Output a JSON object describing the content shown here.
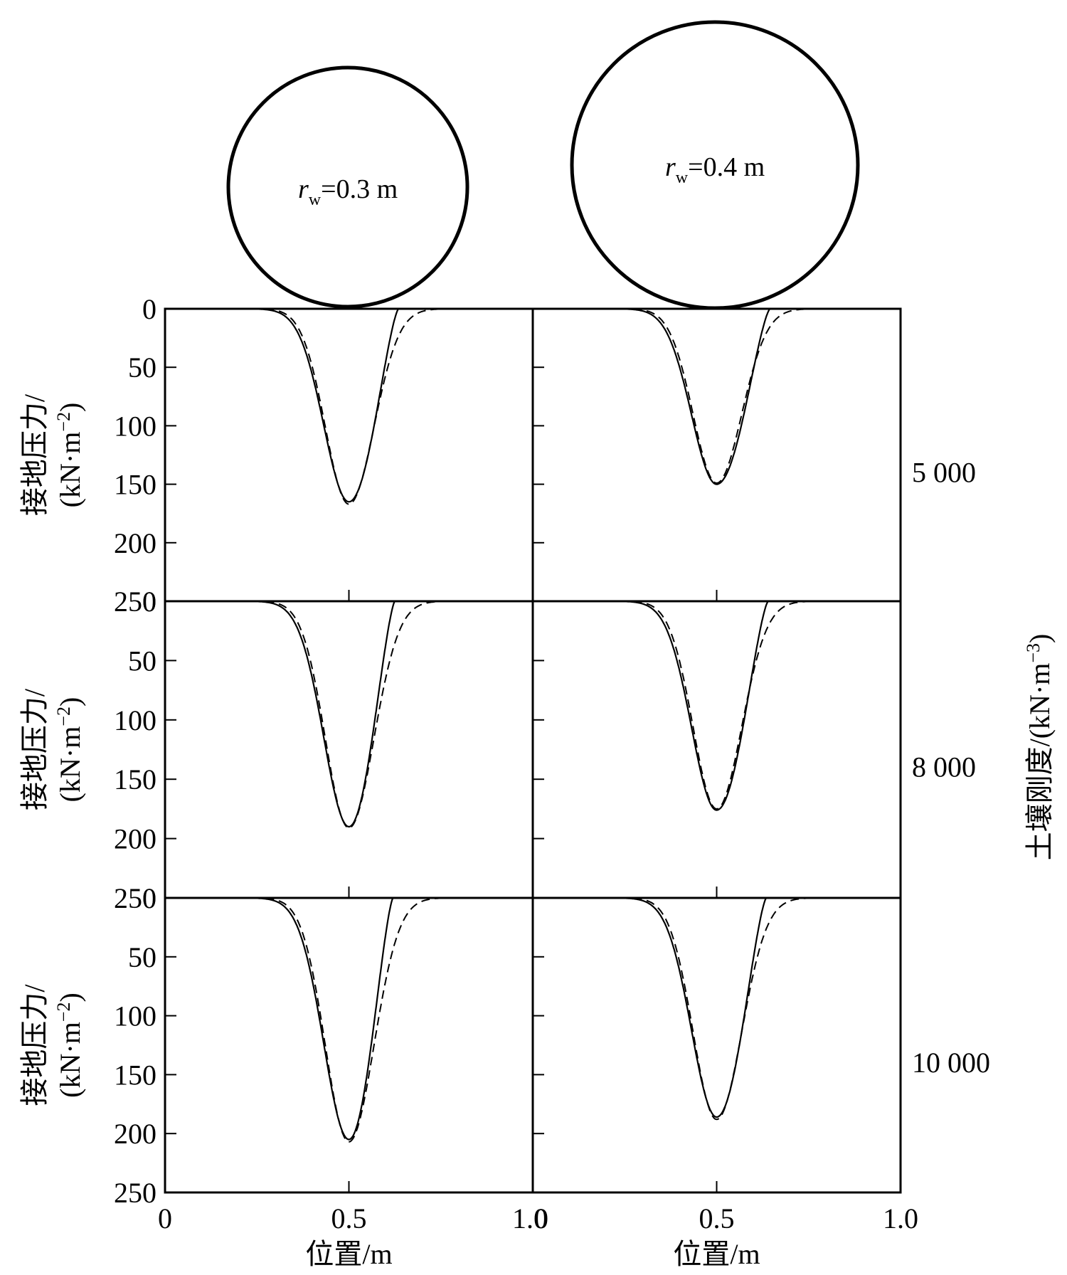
{
  "chart_data": {
    "type": "line",
    "columns": [
      {
        "wheel_label_main": "r",
        "wheel_label_sub": "w",
        "wheel_label_value": "=0.3 m",
        "wheel_radius_m": 0.3
      },
      {
        "wheel_label_main": "r",
        "wheel_label_sub": "w",
        "wheel_label_value": "=0.4 m",
        "wheel_radius_m": 0.4
      }
    ],
    "rows": [
      {
        "stiffness_label": "5 000",
        "peaks": [
          [
            165,
            167
          ],
          [
            150,
            149
          ]
        ],
        "solid_end": [
          0.635,
          0.645
        ]
      },
      {
        "stiffness_label": "8 000",
        "peaks": [
          [
            190,
            191
          ],
          [
            176,
            175
          ]
        ],
        "solid_end": [
          0.625,
          0.64
        ]
      },
      {
        "stiffness_label": "10 000",
        "peaks": [
          [
            205,
            207
          ],
          [
            186,
            188
          ]
        ],
        "solid_end": [
          0.62,
          0.635
        ]
      }
    ],
    "series": [
      {
        "style": "solid"
      },
      {
        "style": "dashed"
      }
    ],
    "xlim": [
      0,
      1.0
    ],
    "ylim": [
      0,
      250
    ],
    "y_reversed": true,
    "x_ticks": [
      "0",
      "0.5",
      "1.0"
    ],
    "x_tick_values": [
      0,
      0.5,
      1.0
    ],
    "y_ticks": [
      "0",
      "50",
      "100",
      "150",
      "200",
      "250"
    ],
    "y_tick_values": [
      0,
      50,
      100,
      150,
      200,
      250
    ],
    "ylabel_line1": "接地压力/",
    "ylabel_line2_pre": "(kN·m",
    "ylabel_line2_sup": "−2",
    "ylabel_line2_post": ")",
    "xlabel": "位置/m",
    "right_label_pre": "土壤刚度/(kN·m",
    "right_label_sup": "−3",
    "right_label_post": ")"
  }
}
